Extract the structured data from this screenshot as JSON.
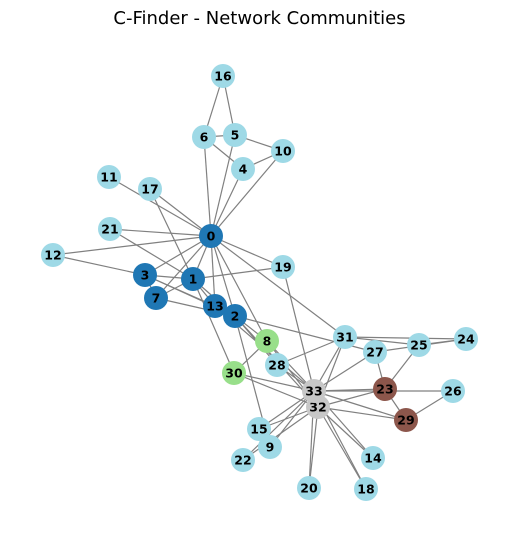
{
  "title": "C-Finder - Network Communities",
  "colors": {
    "light_blue": "#9ed9e6",
    "dark_blue": "#1f77b4",
    "light_green": "#98df8a",
    "brown": "#8c564b",
    "light_gray": "#c7c7c7",
    "edge": "#808080"
  },
  "nodes": [
    {
      "id": "0",
      "color": "dark_blue"
    },
    {
      "id": "1",
      "color": "dark_blue"
    },
    {
      "id": "2",
      "color": "dark_blue"
    },
    {
      "id": "3",
      "color": "dark_blue"
    },
    {
      "id": "4",
      "color": "light_blue"
    },
    {
      "id": "5",
      "color": "light_blue"
    },
    {
      "id": "6",
      "color": "light_blue"
    },
    {
      "id": "7",
      "color": "dark_blue"
    },
    {
      "id": "8",
      "color": "light_green"
    },
    {
      "id": "9",
      "color": "light_blue"
    },
    {
      "id": "10",
      "color": "light_blue"
    },
    {
      "id": "11",
      "color": "light_blue"
    },
    {
      "id": "12",
      "color": "light_blue"
    },
    {
      "id": "13",
      "color": "dark_blue"
    },
    {
      "id": "14",
      "color": "light_blue"
    },
    {
      "id": "15",
      "color": "light_blue"
    },
    {
      "id": "16",
      "color": "light_blue"
    },
    {
      "id": "17",
      "color": "light_blue"
    },
    {
      "id": "18",
      "color": "light_blue"
    },
    {
      "id": "19",
      "color": "light_blue"
    },
    {
      "id": "20",
      "color": "light_blue"
    },
    {
      "id": "21",
      "color": "light_blue"
    },
    {
      "id": "22",
      "color": "light_blue"
    },
    {
      "id": "23",
      "color": "brown"
    },
    {
      "id": "24",
      "color": "light_blue"
    },
    {
      "id": "25",
      "color": "light_blue"
    },
    {
      "id": "26",
      "color": "light_blue"
    },
    {
      "id": "27",
      "color": "light_blue"
    },
    {
      "id": "28",
      "color": "light_blue"
    },
    {
      "id": "29",
      "color": "brown"
    },
    {
      "id": "30",
      "color": "light_green"
    },
    {
      "id": "31",
      "color": "light_blue"
    },
    {
      "id": "32",
      "color": "light_gray"
    },
    {
      "id": "33",
      "color": "light_gray"
    }
  ],
  "edges": [
    [
      "0",
      "1"
    ],
    [
      "0",
      "2"
    ],
    [
      "0",
      "3"
    ],
    [
      "0",
      "4"
    ],
    [
      "0",
      "5"
    ],
    [
      "0",
      "6"
    ],
    [
      "0",
      "7"
    ],
    [
      "0",
      "8"
    ],
    [
      "0",
      "10"
    ],
    [
      "0",
      "11"
    ],
    [
      "0",
      "12"
    ],
    [
      "0",
      "13"
    ],
    [
      "0",
      "17"
    ],
    [
      "0",
      "19"
    ],
    [
      "0",
      "21"
    ],
    [
      "0",
      "31"
    ],
    [
      "1",
      "2"
    ],
    [
      "1",
      "3"
    ],
    [
      "1",
      "7"
    ],
    [
      "1",
      "13"
    ],
    [
      "1",
      "17"
    ],
    [
      "1",
      "19"
    ],
    [
      "1",
      "21"
    ],
    [
      "1",
      "30"
    ],
    [
      "2",
      "3"
    ],
    [
      "2",
      "7"
    ],
    [
      "2",
      "8"
    ],
    [
      "2",
      "9"
    ],
    [
      "2",
      "13"
    ],
    [
      "2",
      "27"
    ],
    [
      "2",
      "28"
    ],
    [
      "2",
      "32"
    ],
    [
      "3",
      "7"
    ],
    [
      "3",
      "12"
    ],
    [
      "3",
      "13"
    ],
    [
      "4",
      "6"
    ],
    [
      "4",
      "10"
    ],
    [
      "5",
      "6"
    ],
    [
      "5",
      "10"
    ],
    [
      "5",
      "16"
    ],
    [
      "6",
      "16"
    ],
    [
      "8",
      "30"
    ],
    [
      "8",
      "32"
    ],
    [
      "8",
      "33"
    ],
    [
      "9",
      "33"
    ],
    [
      "13",
      "33"
    ],
    [
      "14",
      "32"
    ],
    [
      "14",
      "33"
    ],
    [
      "15",
      "32"
    ],
    [
      "15",
      "33"
    ],
    [
      "18",
      "32"
    ],
    [
      "18",
      "33"
    ],
    [
      "19",
      "33"
    ],
    [
      "20",
      "32"
    ],
    [
      "20",
      "33"
    ],
    [
      "22",
      "32"
    ],
    [
      "22",
      "33"
    ],
    [
      "23",
      "25"
    ],
    [
      "23",
      "27"
    ],
    [
      "23",
      "29"
    ],
    [
      "23",
      "32"
    ],
    [
      "23",
      "33"
    ],
    [
      "24",
      "25"
    ],
    [
      "24",
      "27"
    ],
    [
      "24",
      "31"
    ],
    [
      "25",
      "31"
    ],
    [
      "26",
      "29"
    ],
    [
      "26",
      "33"
    ],
    [
      "27",
      "33"
    ],
    [
      "28",
      "31"
    ],
    [
      "28",
      "33"
    ],
    [
      "29",
      "32"
    ],
    [
      "29",
      "33"
    ],
    [
      "30",
      "32"
    ],
    [
      "30",
      "33"
    ],
    [
      "31",
      "32"
    ],
    [
      "31",
      "33"
    ],
    [
      "32",
      "33"
    ]
  ]
}
